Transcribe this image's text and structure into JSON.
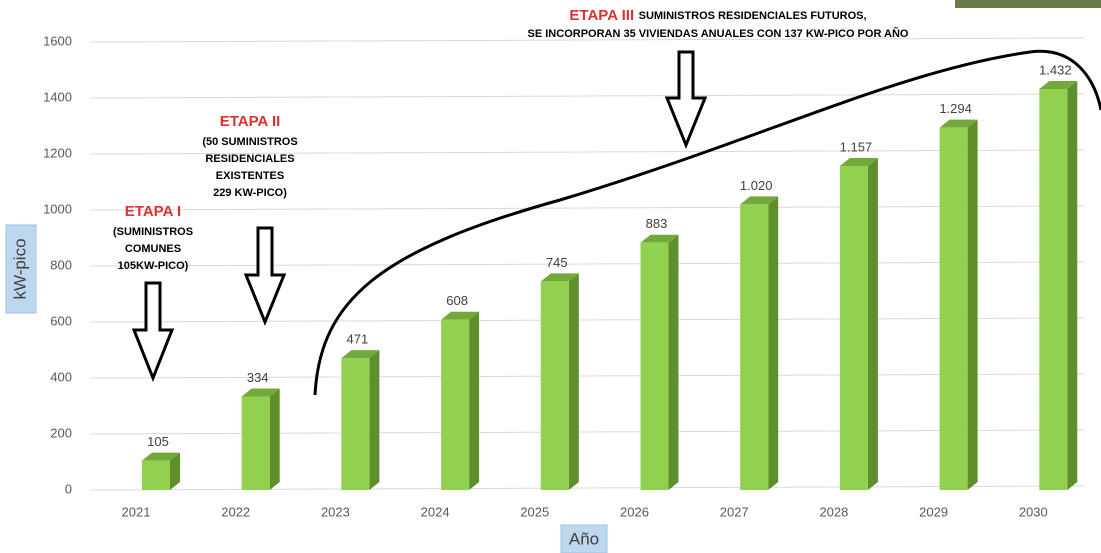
{
  "chart_data": {
    "type": "bar3d",
    "categories": [
      "2021",
      "2022",
      "2023",
      "2024",
      "2025",
      "2026",
      "2027",
      "2028",
      "2029",
      "2030"
    ],
    "values": [
      105,
      334,
      471,
      608,
      745,
      883,
      1020,
      1157,
      1294,
      1432
    ],
    "value_labels": [
      "105",
      "334",
      "471",
      "608",
      "745",
      "883",
      "1.020",
      "1.157",
      "1.294",
      "1.432"
    ],
    "color": "#92d050",
    "ylim": [
      0,
      1600
    ],
    "yticks": [
      0,
      200,
      400,
      600,
      800,
      1000,
      1200,
      1400,
      1600
    ],
    "grid": true,
    "xlabel": "Año",
    "ylabel": "kW-pico",
    "annotations": [
      {
        "title": "ETAPA I",
        "lines": [
          "(SUMINISTROS",
          "COMUNES",
          "105KW-PICO)"
        ]
      },
      {
        "title": "ETAPA II",
        "lines": [
          "(50 SUMINISTROS",
          "RESIDENCIALES",
          "EXISTENTES",
          "229 KW-PICO)"
        ]
      },
      {
        "title": "ETAPA III",
        "lines": [
          "SUMINISTROS RESIDENCIALES FUTUROS,",
          "SE INCORPORAN 35 VIVIENDAS ANUALES CON 137  KW-PICO POR AÑO"
        ]
      }
    ]
  }
}
